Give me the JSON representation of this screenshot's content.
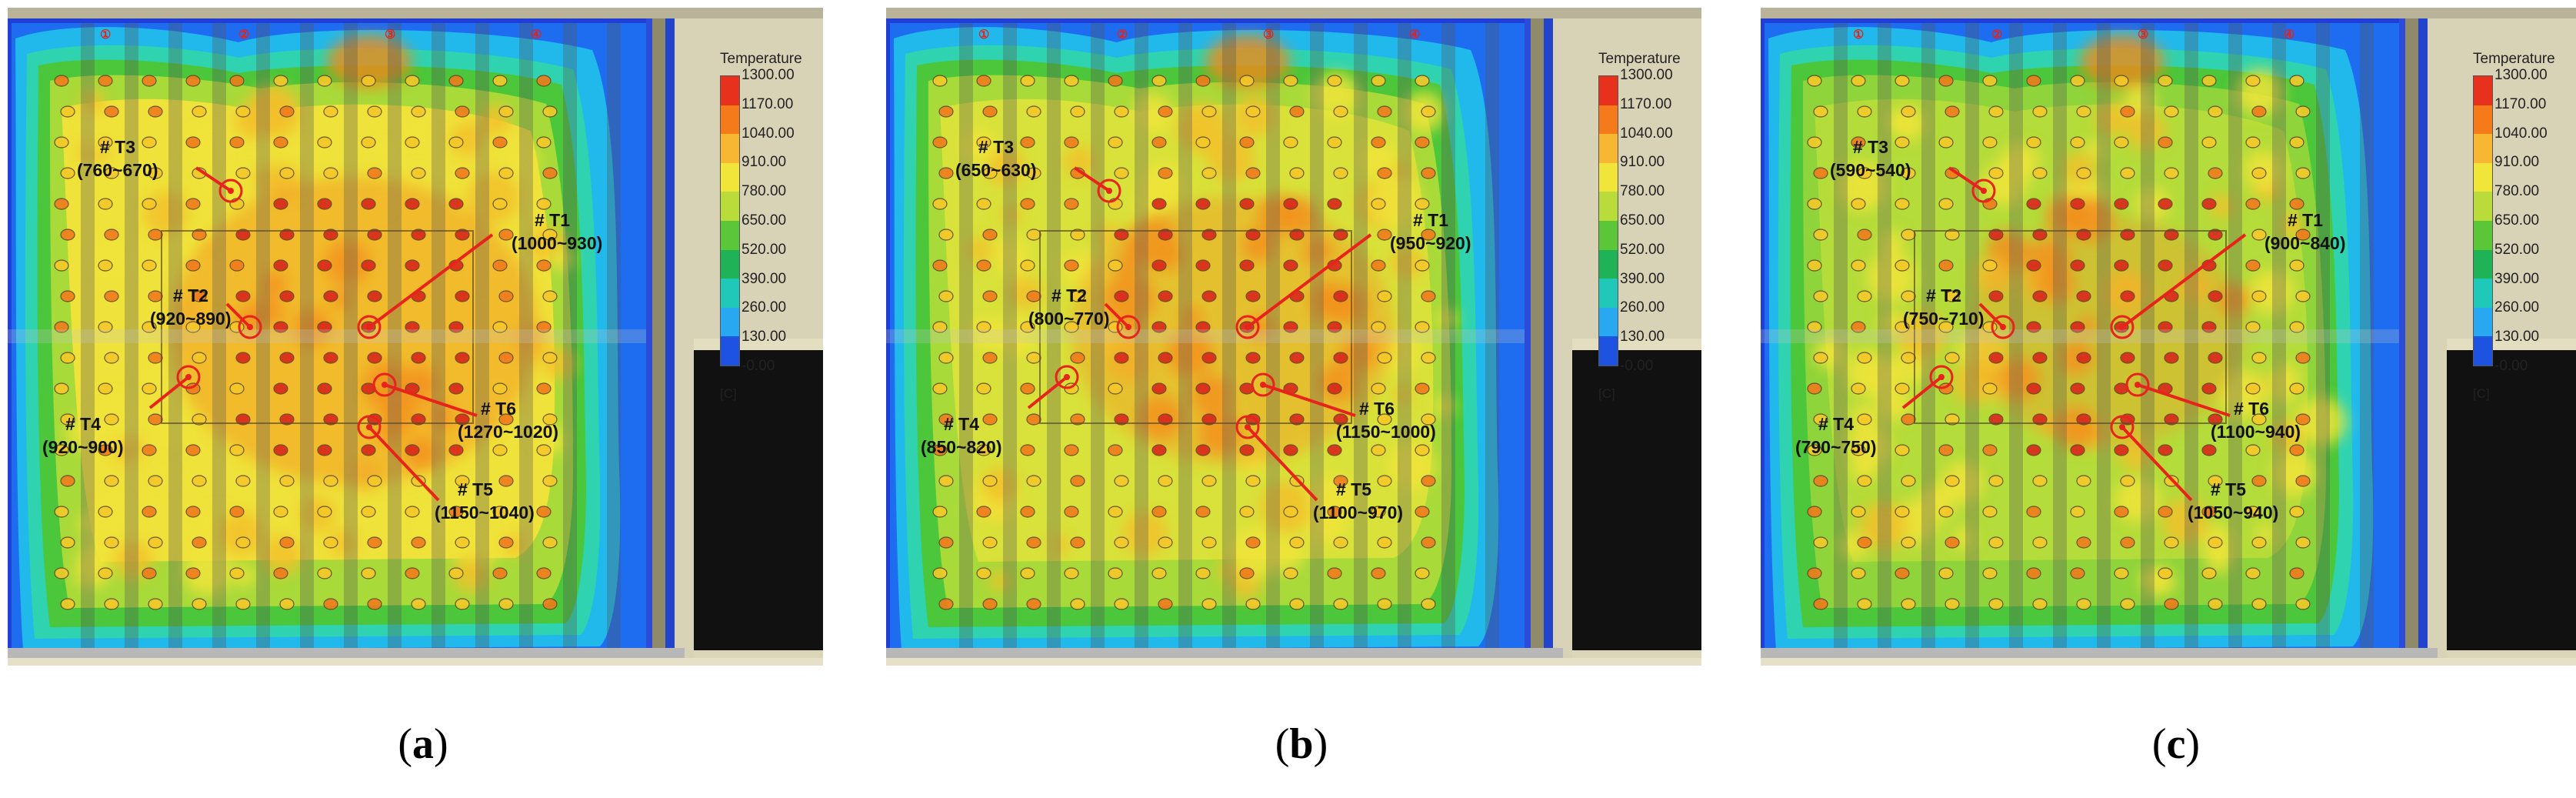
{
  "legend": {
    "title": "Temperature",
    "unit": "[C]",
    "ticks": [
      "1300.00",
      "1170.00",
      "1040.00",
      "910.00",
      "780.00",
      "650.00",
      "520.00",
      "390.00",
      "260.00",
      "130.00",
      "-0.00"
    ],
    "colors": [
      "#e8311c",
      "#f57a1a",
      "#f7b733",
      "#f2e53a",
      "#b9dc3a",
      "#5cc639",
      "#1fb257",
      "#1fc8b8",
      "#27a8f0",
      "#1e52e0"
    ]
  },
  "column_markers": [
    "①",
    "②",
    "③",
    "④"
  ],
  "panels": [
    {
      "caption_letter": "a",
      "sensors": [
        {
          "id": "# T1",
          "range": "(1000~930)"
        },
        {
          "id": "# T2",
          "range": "(920~890)"
        },
        {
          "id": "# T3",
          "range": "(760~670)"
        },
        {
          "id": "# T4",
          "range": "(920~900)"
        },
        {
          "id": "# T5",
          "range": "(1150~1040)"
        },
        {
          "id": "# T6",
          "range": "(1270~1020)"
        }
      ]
    },
    {
      "caption_letter": "b",
      "sensors": [
        {
          "id": "# T1",
          "range": "(950~920)"
        },
        {
          "id": "# T2",
          "range": "(800~770)"
        },
        {
          "id": "# T3",
          "range": "(650~630)"
        },
        {
          "id": "# T4",
          "range": "(850~820)"
        },
        {
          "id": "# T5",
          "range": "(1100~970)"
        },
        {
          "id": "# T6",
          "range": "(1150~1000)"
        }
      ]
    },
    {
      "caption_letter": "c",
      "sensors": [
        {
          "id": "# T1",
          "range": "(900~840)"
        },
        {
          "id": "# T2",
          "range": "(750~710)"
        },
        {
          "id": "# T3",
          "range": "(590~540)"
        },
        {
          "id": "# T4",
          "range": "(790~750)"
        },
        {
          "id": "# T5",
          "range": "(1050~940)"
        },
        {
          "id": "# T6",
          "range": "(1100~940)"
        }
      ]
    }
  ]
}
